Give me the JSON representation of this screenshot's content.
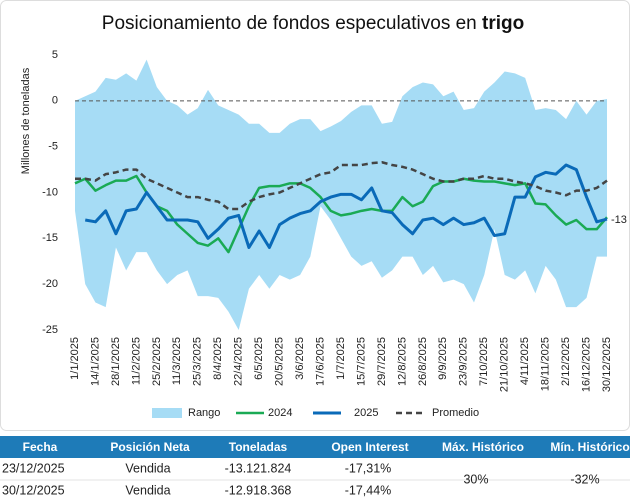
{
  "chart_data": {
    "type": "line",
    "title": "Posicionamiento de fondos especulativos en",
    "title_bold": "trigo",
    "y_label": "Millones de toneladas",
    "categories": [
      "1/1/2025",
      null,
      "14/1/2025",
      null,
      "28/1/2025",
      null,
      "11/2/2025",
      null,
      "25/2/2025",
      null,
      "11/3/2025",
      null,
      "25/3/2025",
      null,
      "8/4/2025",
      null,
      "22/4/2025",
      null,
      "6/5/2025",
      null,
      "20/5/2025",
      null,
      "3/6/2025",
      null,
      "17/6/2025",
      null,
      "1/7/2025",
      null,
      "15/7/2025",
      null,
      "29/7/2025",
      null,
      "12/8/2025",
      null,
      "26/8/2025",
      null,
      "9/9/2025",
      null,
      "23/9/2025",
      null,
      "7/10/2025",
      null,
      "21/10/2025",
      null,
      "4/11/2025",
      null,
      "18/11/2025",
      null,
      "2/12/2025",
      null,
      "16/12/2025",
      null,
      "30/12/2025"
    ],
    "range": {
      "name": "Rango",
      "color": "#a6dcf5",
      "upper": [
        0,
        0.5,
        1,
        2.5,
        2.3,
        3,
        2.2,
        4.5,
        1.5,
        0,
        -0.5,
        -1.5,
        -0.8,
        1.2,
        -0.5,
        -1,
        -1.5,
        -2.5,
        -2.5,
        -3.5,
        -3.5,
        -2.5,
        -2,
        -2,
        -3.3,
        -2.8,
        -2.2,
        -1.2,
        -0.5,
        -0.5,
        -2.5,
        -2.3,
        0.5,
        1.5,
        2,
        1.8,
        0.5,
        1,
        -1,
        -0.8,
        1,
        2,
        3.2,
        3,
        2.5,
        -1,
        -0.8,
        -1,
        -2,
        0,
        -1.5,
        0,
        0.2
      ],
      "lower": [
        -12,
        -20,
        -22,
        -22.5,
        -16,
        -18.5,
        -16.5,
        -16.5,
        -18.5,
        -20,
        -19,
        -18.5,
        -21.3,
        -21.3,
        -21.5,
        -23,
        -25,
        -20.5,
        -19,
        -20.5,
        -19,
        -19.5,
        -19,
        -17,
        -11.5,
        -13,
        -15,
        -17,
        -18,
        -17.5,
        -19.3,
        -18.5,
        -17,
        -17,
        -19,
        -18,
        -19.8,
        -19.5,
        -20,
        -22,
        -19,
        -14,
        -19,
        -19.5,
        -18.5,
        -21,
        -18,
        -19.5,
        -22.5,
        -22.5,
        -21.5,
        -17,
        -17
      ]
    },
    "series": [
      {
        "name": "2024",
        "color": "#1aaa55",
        "width": 2.5,
        "dashed": false,
        "values": [
          -9,
          -8.5,
          -9.8,
          -9.2,
          -8.7,
          -8.7,
          -8.2,
          -10,
          -11.5,
          -12,
          -13.5,
          -14.5,
          -15.5,
          -15.8,
          -15,
          -16.5,
          -14,
          -11.5,
          -9.5,
          -9.3,
          -9.3,
          -9,
          -9,
          -9.5,
          -10.5,
          -12,
          -12.5,
          -12.3,
          -12,
          -11.8,
          -12,
          -12,
          -10.5,
          -11.5,
          -11,
          -9.3,
          -8.8,
          -8.8,
          -8.5,
          -8.7,
          -8.8,
          -8.8,
          -9,
          -9.2,
          -9,
          -11.2,
          -11.3,
          -12.5,
          -13.5,
          -13,
          -14,
          -14,
          -12.7
        ]
      },
      {
        "name": "2025",
        "color": "#0a6ab8",
        "width": 3,
        "dashed": false,
        "values": [
          null,
          -13,
          -13.2,
          -12,
          -14.5,
          -12,
          -11.8,
          -10,
          -11.5,
          -13,
          -13,
          -13,
          -13.2,
          -15,
          -14,
          -12.8,
          -12.5,
          -16,
          -14.2,
          -16,
          -13.5,
          -12.8,
          -12.3,
          -12,
          -11,
          -10.5,
          -10.2,
          -10.2,
          -10.8,
          -9.5,
          -12,
          -12.2,
          -13.5,
          -14.5,
          -13,
          -12.8,
          -13.5,
          -12.8,
          -13.5,
          -13.3,
          -12.8,
          -14.7,
          -14.5,
          -10.5,
          -10.5,
          -8.3,
          -7.8,
          -8,
          -7,
          -7.5,
          -10.5,
          -13.2,
          -12.9
        ],
        "value_labels": [
          null,
          null,
          null,
          null,
          null,
          null,
          null,
          null,
          null,
          null,
          null,
          null,
          null,
          null,
          null,
          null,
          null,
          null,
          null,
          null,
          null,
          null,
          null,
          null,
          null,
          null,
          null,
          null,
          null,
          null,
          null,
          null,
          null,
          null,
          null,
          null,
          null,
          null,
          null,
          null,
          null,
          null,
          null,
          null,
          null,
          null,
          null,
          null,
          null,
          null,
          null,
          null,
          "-13"
        ]
      },
      {
        "name": "Promedio",
        "color": "#444444",
        "width": 2.5,
        "dashed": true,
        "values": [
          -8.5,
          -8.5,
          -8.7,
          -8,
          -7.8,
          -7.5,
          -7.5,
          -8.5,
          -9,
          -9.5,
          -10,
          -10.5,
          -10.5,
          -10.8,
          -11,
          -11.8,
          -11.8,
          -11,
          -10.5,
          -10.2,
          -10,
          -9.5,
          -9,
          -8.5,
          -8,
          -7.8,
          -7,
          -7,
          -7,
          -6.8,
          -6.7,
          -7,
          -7.2,
          -7.5,
          -8,
          -8.5,
          -8.8,
          -8.8,
          -8.5,
          -8.5,
          -8.2,
          -8.5,
          -8.5,
          -8.8,
          -9,
          -9.3,
          -9.8,
          -10,
          -10.3,
          -9.8,
          -9.8,
          -9.5,
          -8.7
        ]
      }
    ],
    "ylim": [
      -25,
      5
    ],
    "yticks": [
      -25,
      -20,
      -15,
      -10,
      -5,
      0,
      5
    ],
    "zero_line": true
  },
  "table": {
    "header_color": "#1e7bb8",
    "headers": [
      "Fecha",
      "Posición Neta",
      "Toneladas",
      "Open Interest",
      "Máx. Histórico",
      "Mín. Histórico"
    ],
    "rows": [
      [
        "23/12/2025",
        "Vendida",
        "-13.121.824",
        "-17,31%"
      ],
      [
        "30/12/2025",
        "Vendida",
        "-12.918.368",
        "-17,44%"
      ]
    ],
    "max_historico": "30%",
    "min_historico": "-32%"
  }
}
